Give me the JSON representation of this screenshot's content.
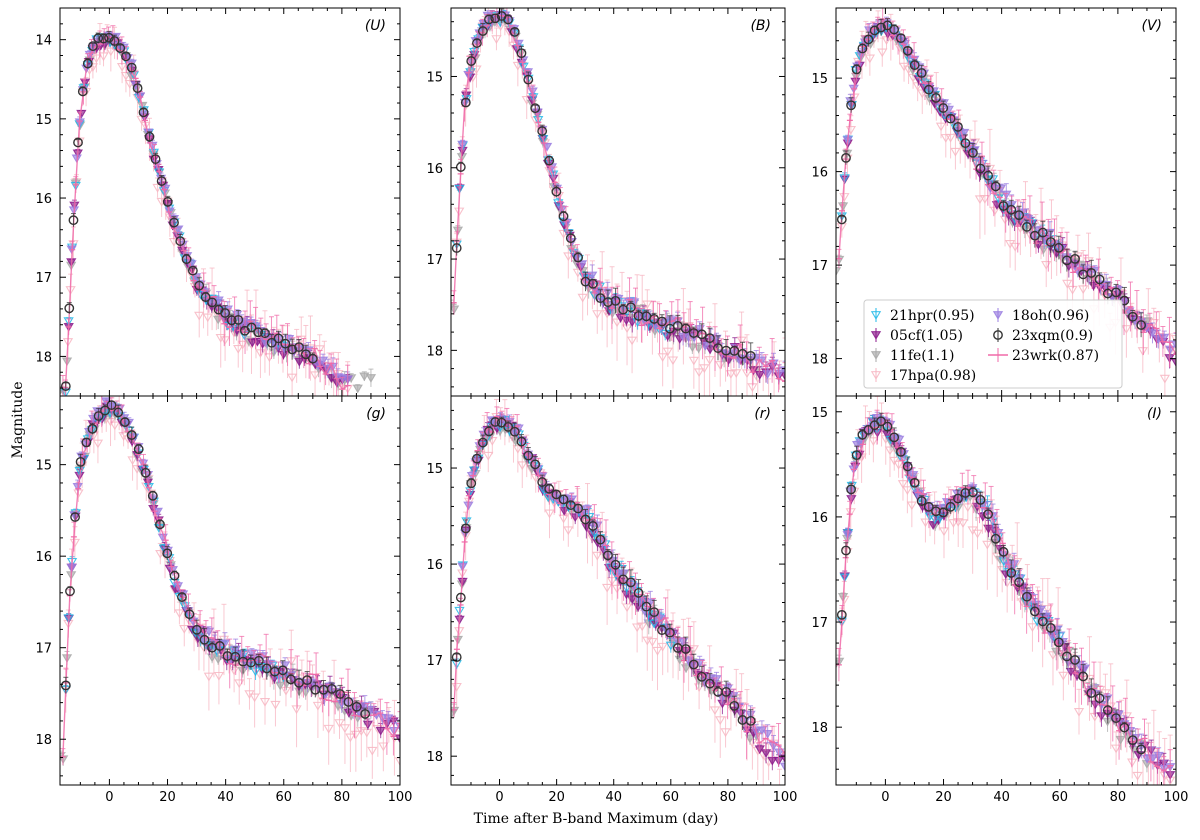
{
  "chart_data": {
    "type": "scatter",
    "xlabel": "Time after B-band Maximum (day)",
    "ylabel": "Magnitude",
    "xlim": [
      -17,
      100
    ],
    "x_ticks": [
      0,
      20,
      40,
      60,
      80,
      100
    ],
    "colors": {
      "21hpr": "#1fb8e8",
      "05cf": "#8b1a8b",
      "11fe": "#a9a9a9",
      "17hpa": "#f7b6c2",
      "18oh": "#9b7fe0",
      "23xqm": "#333333",
      "23wrk": "#f06aa8"
    },
    "legend": [
      {
        "key": "21hpr",
        "label": "21hpr(0.95)",
        "marker": "triangle"
      },
      {
        "key": "05cf",
        "label": "05cf(1.05)",
        "marker": "triangle"
      },
      {
        "key": "11fe",
        "label": "11fe(1.1)",
        "marker": "triangle"
      },
      {
        "key": "17hpa",
        "label": "17hpa(0.98)",
        "marker": "triangle"
      },
      {
        "key": "18oh",
        "label": "18oh(0.96)",
        "marker": "triangle"
      },
      {
        "key": "23xqm",
        "label": "23xqm(0.9)",
        "marker": "circle"
      },
      {
        "key": "23wrk",
        "label": "23wrk(0.87)",
        "marker": "line"
      }
    ],
    "panels": [
      {
        "band": "(U)",
        "ylim": [
          18.5,
          13.6
        ],
        "yticks": [
          14,
          15,
          16,
          17,
          18
        ],
        "curve": [
          [
            -15,
            18.4
          ],
          [
            -13,
            16.7
          ],
          [
            -11,
            15.4
          ],
          [
            -9,
            14.6
          ],
          [
            -7,
            14.2
          ],
          [
            -4,
            14.0
          ],
          [
            -1,
            13.98
          ],
          [
            2,
            14.02
          ],
          [
            5,
            14.15
          ],
          [
            8,
            14.4
          ],
          [
            11,
            14.8
          ],
          [
            14,
            15.25
          ],
          [
            18,
            15.8
          ],
          [
            22,
            16.3
          ],
          [
            26,
            16.7
          ],
          [
            30,
            17.05
          ],
          [
            35,
            17.3
          ],
          [
            40,
            17.5
          ],
          [
            50,
            17.7
          ],
          [
            60,
            17.85
          ],
          [
            70,
            18.0
          ],
          [
            80,
            18.3
          ]
        ],
        "tail_end": 82,
        "xqm_end": 70
      },
      {
        "band": "(B)",
        "ylim": [
          18.5,
          14.25
        ],
        "yticks": [
          15,
          16,
          17,
          18
        ],
        "curve": [
          [
            -16,
            17.5
          ],
          [
            -14,
            16.2
          ],
          [
            -12,
            15.3
          ],
          [
            -10,
            14.85
          ],
          [
            -7,
            14.55
          ],
          [
            -4,
            14.4
          ],
          [
            -1,
            14.33
          ],
          [
            2,
            14.35
          ],
          [
            5,
            14.5
          ],
          [
            8,
            14.8
          ],
          [
            11,
            15.15
          ],
          [
            14,
            15.5
          ],
          [
            18,
            16.0
          ],
          [
            22,
            16.5
          ],
          [
            26,
            16.9
          ],
          [
            30,
            17.2
          ],
          [
            36,
            17.4
          ],
          [
            45,
            17.55
          ],
          [
            55,
            17.68
          ],
          [
            65,
            17.8
          ],
          [
            75,
            17.92
          ],
          [
            85,
            18.05
          ],
          [
            100,
            18.3
          ]
        ],
        "tail_end": 100,
        "xqm_end": 88
      },
      {
        "band": "(V)",
        "ylim": [
          18.4,
          14.25
        ],
        "yticks": [
          15,
          16,
          17,
          18
        ],
        "curve": [
          [
            -16,
            17.0
          ],
          [
            -14,
            16.0
          ],
          [
            -12,
            15.3
          ],
          [
            -10,
            14.9
          ],
          [
            -7,
            14.6
          ],
          [
            -3,
            14.45
          ],
          [
            0,
            14.42
          ],
          [
            3,
            14.48
          ],
          [
            6,
            14.62
          ],
          [
            10,
            14.85
          ],
          [
            15,
            15.1
          ],
          [
            20,
            15.32
          ],
          [
            25,
            15.55
          ],
          [
            30,
            15.8
          ],
          [
            35,
            16.05
          ],
          [
            40,
            16.3
          ],
          [
            50,
            16.6
          ],
          [
            60,
            16.85
          ],
          [
            70,
            17.1
          ],
          [
            80,
            17.35
          ],
          [
            90,
            17.65
          ],
          [
            100,
            17.95
          ]
        ],
        "tail_end": 100,
        "xqm_end": 88
      },
      {
        "band": "(g)",
        "ylim": [
          18.5,
          14.25
        ],
        "yticks": [
          15,
          16,
          17,
          18
        ],
        "curve": [
          [
            -16,
            18.2
          ],
          [
            -14,
            16.6
          ],
          [
            -12,
            15.6
          ],
          [
            -10,
            15.0
          ],
          [
            -7,
            14.65
          ],
          [
            -3,
            14.42
          ],
          [
            0,
            14.36
          ],
          [
            3,
            14.4
          ],
          [
            6,
            14.55
          ],
          [
            10,
            14.85
          ],
          [
            14,
            15.25
          ],
          [
            18,
            15.75
          ],
          [
            22,
            16.2
          ],
          [
            26,
            16.55
          ],
          [
            30,
            16.8
          ],
          [
            35,
            16.95
          ],
          [
            40,
            17.05
          ],
          [
            50,
            17.15
          ],
          [
            60,
            17.28
          ],
          [
            70,
            17.4
          ],
          [
            80,
            17.55
          ],
          [
            90,
            17.72
          ],
          [
            100,
            17.9
          ]
        ],
        "tail_end": 100,
        "xqm_end": 88
      },
      {
        "band": "(r)",
        "ylim": [
          18.3,
          14.25
        ],
        "yticks": [
          15,
          16,
          17,
          18
        ],
        "curve": [
          [
            -16,
            17.5
          ],
          [
            -14,
            16.5
          ],
          [
            -12,
            15.7
          ],
          [
            -10,
            15.15
          ],
          [
            -7,
            14.8
          ],
          [
            -4,
            14.6
          ],
          [
            -1,
            14.52
          ],
          [
            2,
            14.52
          ],
          [
            5,
            14.58
          ],
          [
            8,
            14.72
          ],
          [
            12,
            14.95
          ],
          [
            16,
            15.2
          ],
          [
            20,
            15.3
          ],
          [
            25,
            15.38
          ],
          [
            30,
            15.48
          ],
          [
            35,
            15.7
          ],
          [
            40,
            16.0
          ],
          [
            50,
            16.4
          ],
          [
            60,
            16.75
          ],
          [
            70,
            17.1
          ],
          [
            80,
            17.4
          ],
          [
            90,
            17.75
          ],
          [
            100,
            18.05
          ]
        ],
        "tail_end": 100,
        "xqm_end": 88
      },
      {
        "band": "(I)",
        "ylim": [
          18.55,
          14.85
        ],
        "yticks": [
          15,
          16,
          17,
          18
        ],
        "curve": [
          [
            -16,
            17.4
          ],
          [
            -14,
            16.5
          ],
          [
            -12,
            15.8
          ],
          [
            -10,
            15.4
          ],
          [
            -7,
            15.18
          ],
          [
            -4,
            15.1
          ],
          [
            -1,
            15.1
          ],
          [
            2,
            15.2
          ],
          [
            5,
            15.35
          ],
          [
            8,
            15.55
          ],
          [
            12,
            15.8
          ],
          [
            16,
            15.98
          ],
          [
            20,
            15.95
          ],
          [
            24,
            15.85
          ],
          [
            28,
            15.75
          ],
          [
            32,
            15.78
          ],
          [
            36,
            16.0
          ],
          [
            40,
            16.35
          ],
          [
            50,
            16.8
          ],
          [
            60,
            17.2
          ],
          [
            70,
            17.6
          ],
          [
            80,
            17.95
          ],
          [
            90,
            18.25
          ],
          [
            100,
            18.45
          ]
        ],
        "tail_end": 98,
        "xqm_end": 88
      }
    ]
  }
}
